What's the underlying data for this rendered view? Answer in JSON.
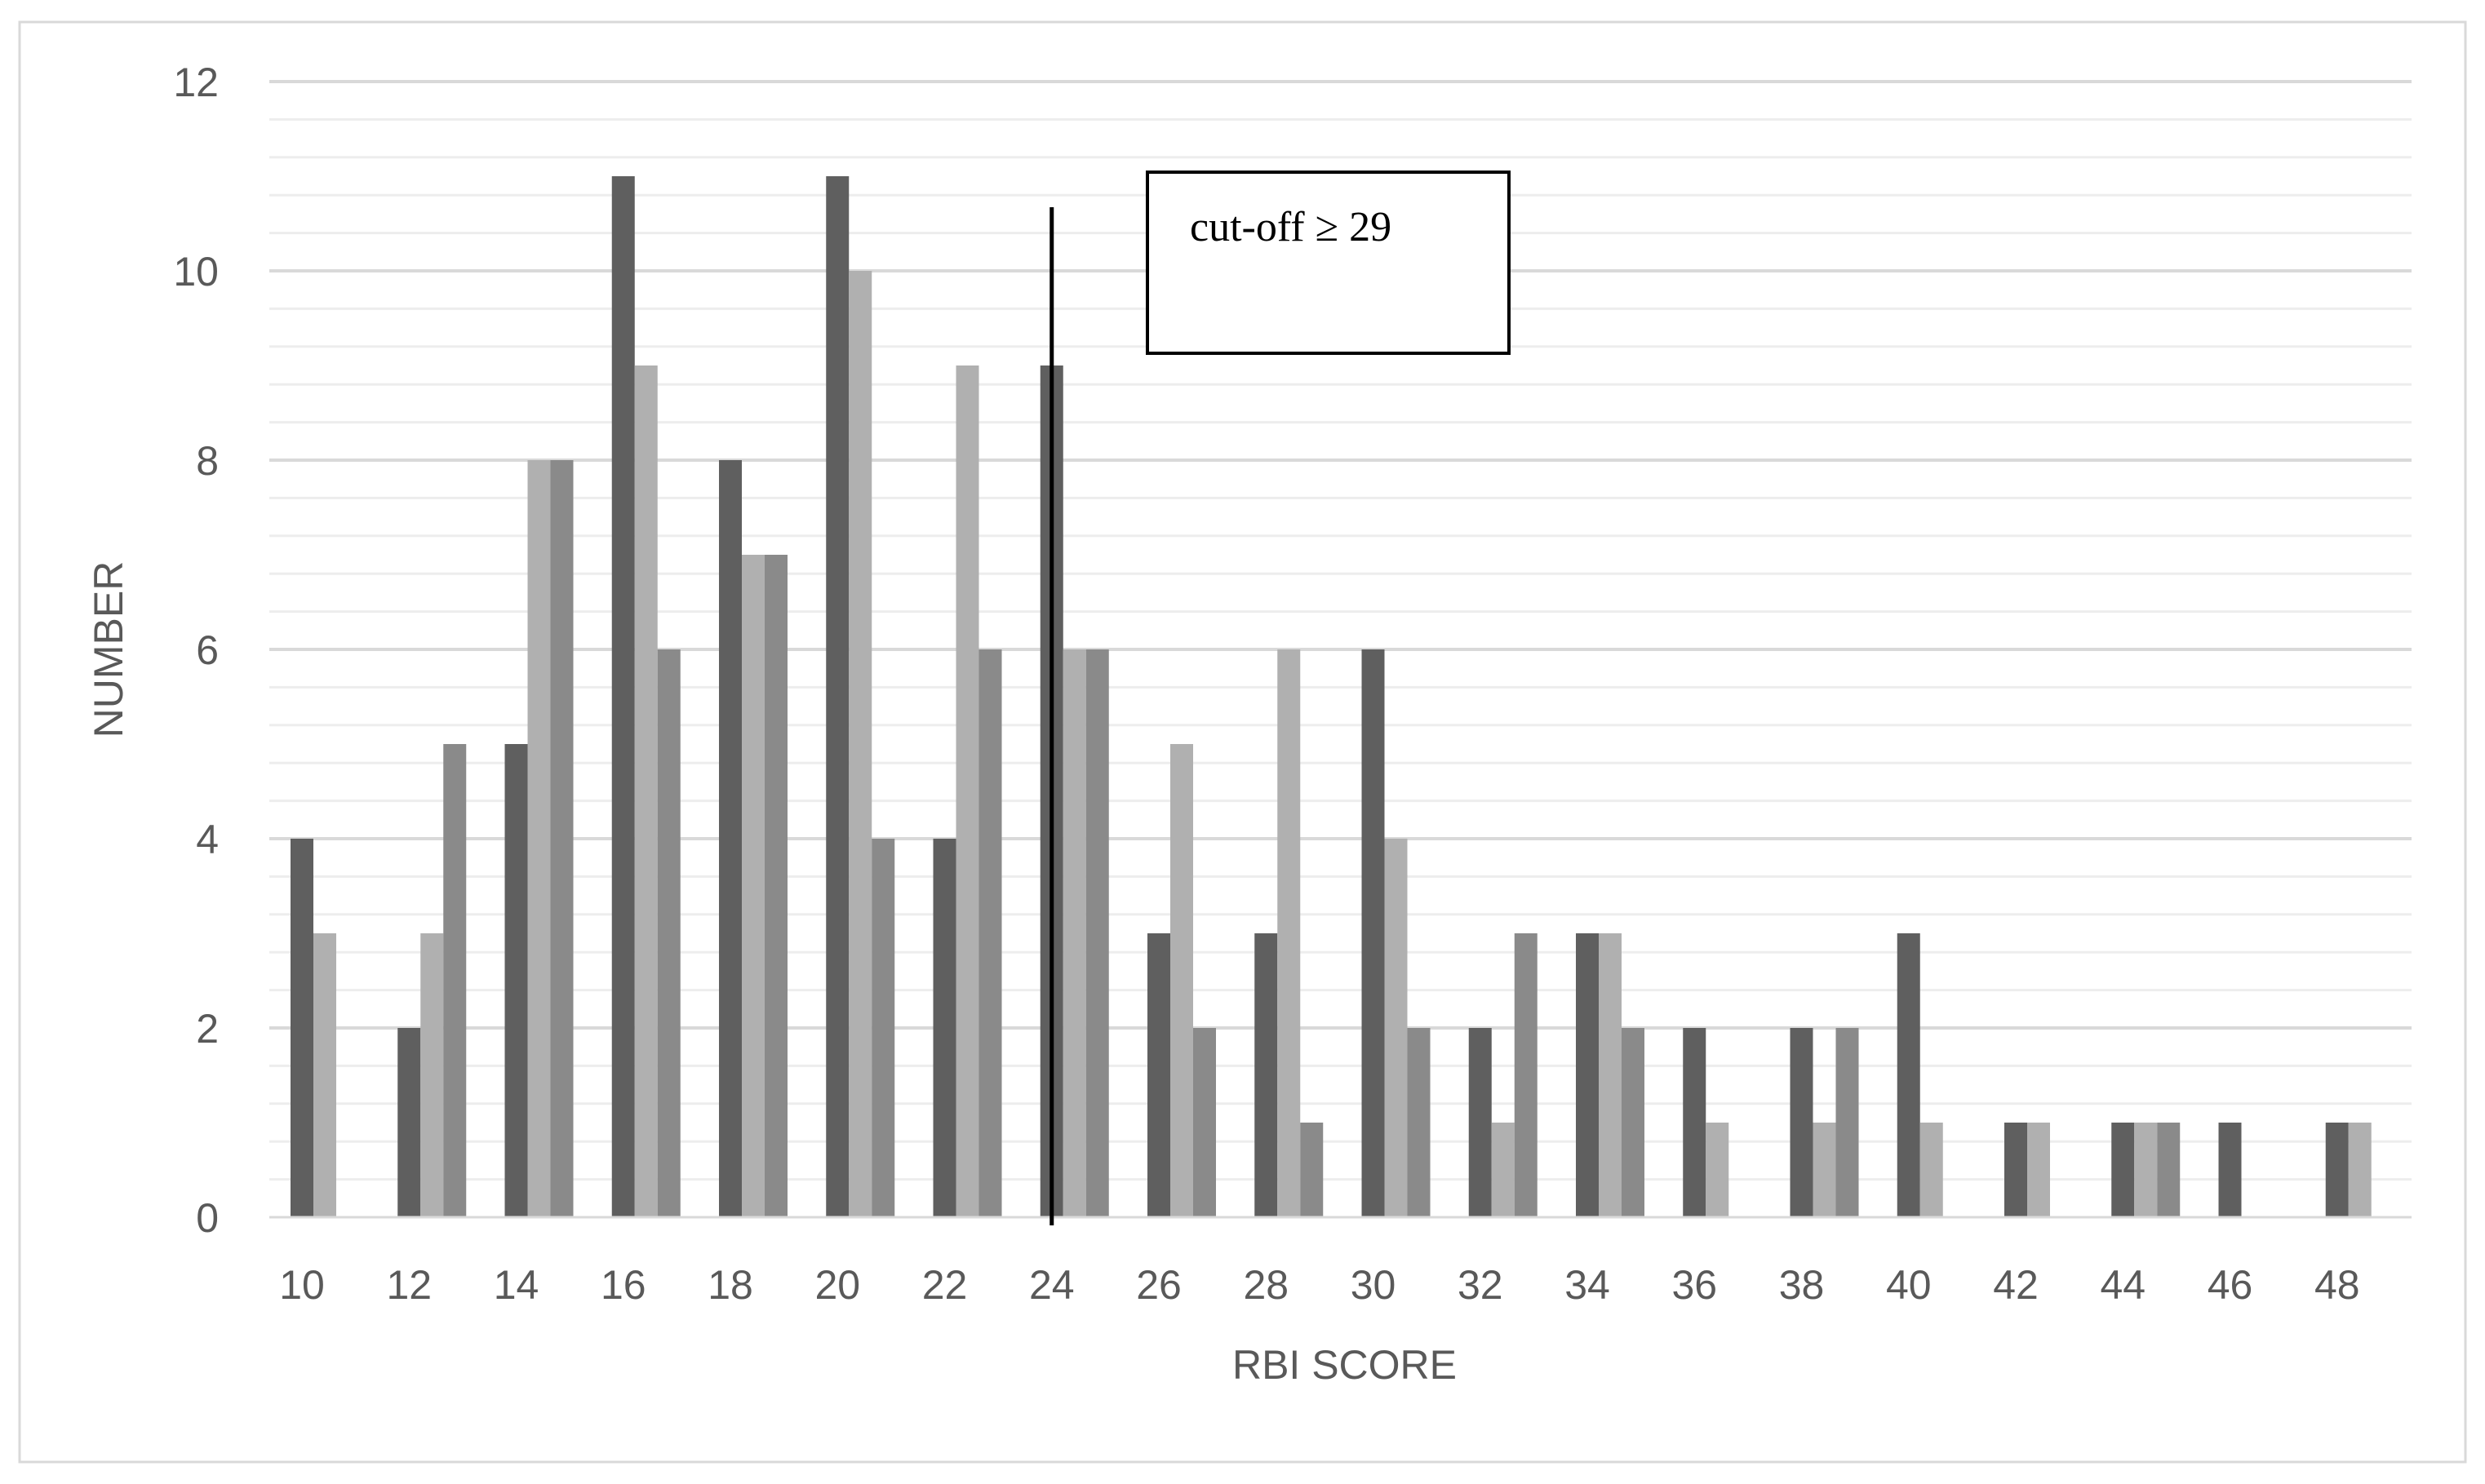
{
  "chart_data": {
    "type": "bar",
    "title": "",
    "xlabel": "RBI SCORE",
    "ylabel": "NUMBER",
    "categories": [
      "10",
      "12",
      "14",
      "16",
      "18",
      "20",
      "22",
      "24",
      "26",
      "28",
      "30",
      "32",
      "34",
      "36",
      "38",
      "40",
      "42",
      "44",
      "46",
      "48"
    ],
    "series": [
      {
        "color": "#5f5f5f",
        "values": [
          4,
          2,
          5,
          11,
          8,
          11,
          4,
          9,
          3,
          3,
          6,
          2,
          3,
          2,
          2,
          3,
          1,
          1,
          1,
          1
        ]
      },
      {
        "color": "#b0b0b0",
        "values": [
          3,
          3,
          8,
          9,
          7,
          10,
          9,
          6,
          5,
          6,
          4,
          1,
          3,
          1,
          1,
          1,
          1,
          1,
          0,
          1
        ]
      },
      {
        "color": "#8a8a8a",
        "values": [
          0,
          5,
          8,
          6,
          7,
          4,
          6,
          6,
          2,
          1,
          2,
          3,
          2,
          0,
          2,
          0,
          0,
          1,
          0,
          0
        ]
      }
    ],
    "ylim": [
      0,
      12
    ],
    "yticks": [
      0,
      2,
      4,
      6,
      8,
      10,
      12
    ],
    "minor_step": 0.4,
    "grid": true,
    "legend": "none",
    "annotations": {
      "cutoff_line_x": 24,
      "cutoff_label": "cut-off ≥ 29"
    }
  }
}
